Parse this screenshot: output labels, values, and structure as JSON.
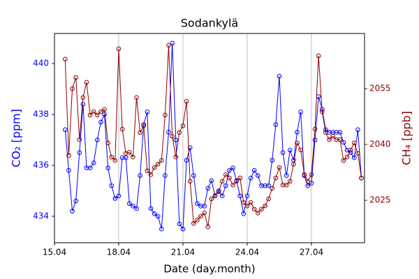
{
  "chart_data": {
    "type": "line",
    "title": "Sodankylä",
    "xlabel": "Date (day.month)",
    "ylabel": "CO₂ [ppm]",
    "y2label": "CH₄ [ppb]",
    "x": [
      15.5,
      15.667,
      15.833,
      16.0,
      16.167,
      16.333,
      16.5,
      16.667,
      16.833,
      17.0,
      17.167,
      17.333,
      17.5,
      17.667,
      17.833,
      18.0,
      18.167,
      18.333,
      18.5,
      18.667,
      18.833,
      19.0,
      19.167,
      19.333,
      19.5,
      19.667,
      19.833,
      20.0,
      20.167,
      20.333,
      20.5,
      20.667,
      20.833,
      21.0,
      21.167,
      21.333,
      21.5,
      21.667,
      21.833,
      22.0,
      22.167,
      22.333,
      22.5,
      22.667,
      22.833,
      23.0,
      23.167,
      23.333,
      23.5,
      23.667,
      23.833,
      24.0,
      24.167,
      24.333,
      24.5,
      24.667,
      24.833,
      25.0,
      25.167,
      25.333,
      25.5,
      25.667,
      25.833,
      26.0,
      26.167,
      26.333,
      26.5,
      26.667,
      26.833,
      27.0,
      27.167,
      27.333,
      27.5,
      27.667,
      27.833,
      28.0,
      28.167,
      28.333,
      28.5,
      28.667,
      28.833,
      29.0,
      29.167,
      29.333
    ],
    "series": [
      {
        "name": "CO₂",
        "color": "#0000ff",
        "axis": "y",
        "values": [
          437.4,
          435.8,
          434.2,
          434.6,
          436.5,
          438.4,
          435.9,
          435.9,
          436.1,
          437.0,
          437.7,
          438.0,
          435.9,
          435.2,
          434.7,
          434.8,
          436.3,
          436.3,
          434.5,
          434.4,
          434.3,
          435.6,
          437.6,
          438.1,
          434.3,
          434.1,
          434.0,
          433.5,
          435.6,
          437.3,
          440.8,
          437.0,
          433.7,
          433.5,
          436.2,
          436.7,
          435.6,
          434.5,
          434.4,
          434.4,
          435.1,
          435.4,
          434.8,
          435.0,
          434.8,
          435.2,
          435.8,
          435.9,
          435.4,
          434.8,
          434.1,
          434.8,
          435.5,
          435.8,
          435.6,
          435.2,
          435.2,
          435.2,
          436.2,
          437.6,
          439.5,
          436.5,
          435.6,
          436.6,
          436.2,
          437.3,
          438.1,
          435.6,
          435.2,
          435.3,
          437.0,
          438.7,
          438.2,
          437.4,
          437.3,
          437.3,
          437.3,
          437.3,
          436.9,
          436.6,
          436.5,
          436.3,
          437.4,
          435.5
        ]
      },
      {
        "name": "CH₄",
        "color": "#8b0000",
        "axis": "y2",
        "values": [
          2062.9,
          2037.0,
          2055.0,
          2058.0,
          2041.3,
          2052.6,
          2056.7,
          2047.9,
          2048.8,
          2047.9,
          2048.8,
          2049.4,
          2040.4,
          2036.6,
          2035.7,
          2065.7,
          2044.1,
          2037.6,
          2037.9,
          2036.6,
          2052.6,
          2043.2,
          2045.0,
          2032.9,
          2031.9,
          2033.8,
          2034.7,
          2035.7,
          2047.9,
          2066.6,
          2042.2,
          2036.6,
          2043.2,
          2045.0,
          2051.6,
          2030.1,
          2018.8,
          2019.7,
          2020.7,
          2021.6,
          2017.9,
          2025.4,
          2026.3,
          2027.3,
          2030.1,
          2031.9,
          2031.0,
          2029.1,
          2030.1,
          2031.0,
          2024.4,
          2023.5,
          2024.4,
          2022.6,
          2021.6,
          2022.6,
          2023.5,
          2025.4,
          2028.2,
          2031.0,
          2033.8,
          2029.1,
          2029.1,
          2030.1,
          2034.7,
          2040.4,
          2038.5,
          2031.9,
          2030.1,
          2031.9,
          2044.1,
          2063.8,
          2048.8,
          2043.2,
          2041.3,
          2042.2,
          2041.3,
          2041.3,
          2035.7,
          2036.6,
          2038.5,
          2040.4,
          2037.6,
          2031.0
        ]
      }
    ],
    "xlim": [
      15,
      29.48
    ],
    "xticks": [
      {
        "value": 15,
        "label": "15.04"
      },
      {
        "value": 18,
        "label": "18.04"
      },
      {
        "value": 21,
        "label": "21.04"
      },
      {
        "value": 24,
        "label": "24.04"
      },
      {
        "value": 27,
        "label": "27.04"
      }
    ],
    "ylim": [
      432.96,
      441.18
    ],
    "yticks": [
      434,
      436,
      438,
      440
    ],
    "y2lim": [
      2013.6,
      2069.8
    ],
    "y2ticks": [
      2025,
      2040,
      2055
    ],
    "xgrid": true
  }
}
